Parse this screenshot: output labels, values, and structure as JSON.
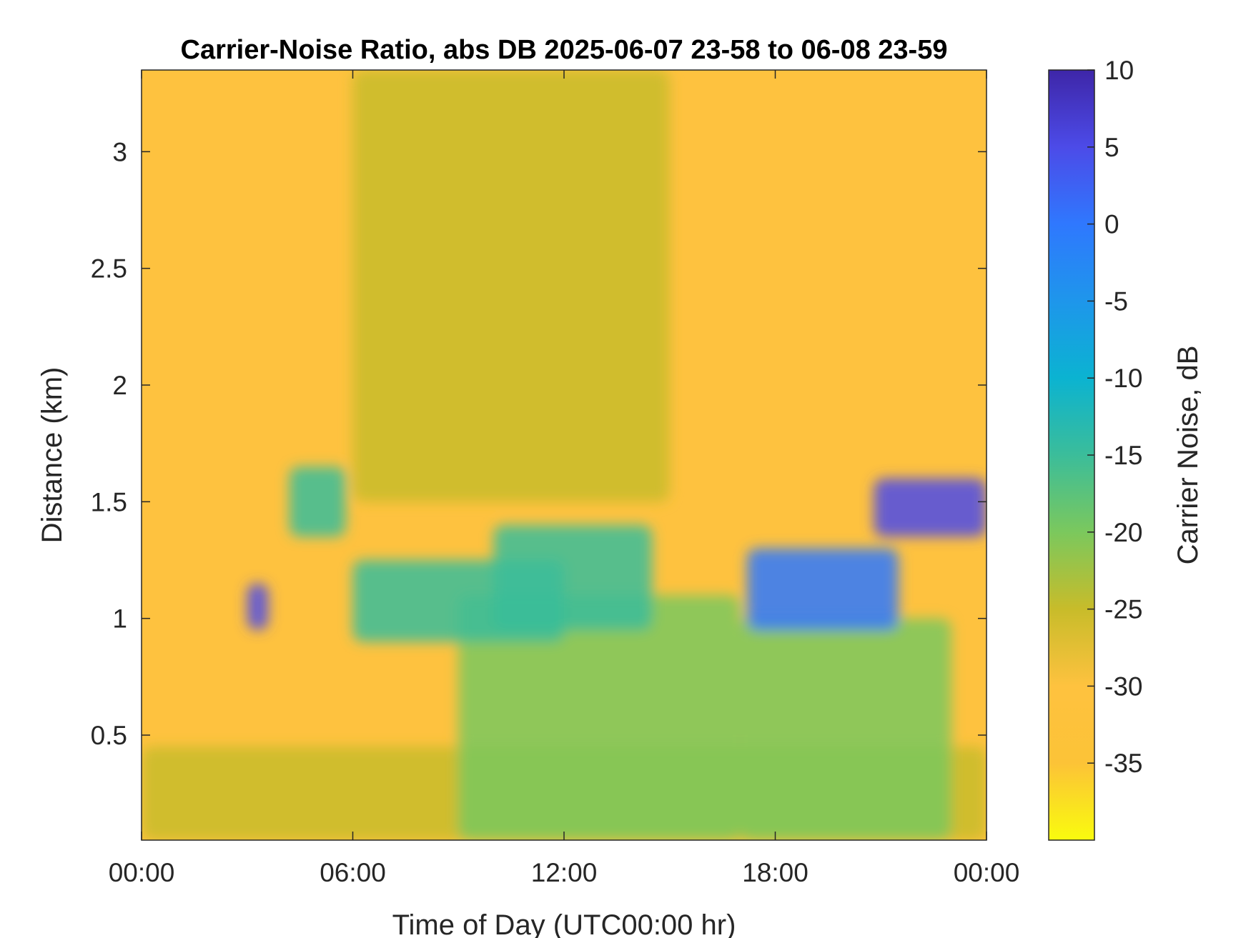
{
  "chart_data": {
    "type": "heatmap",
    "title": "Carrier-Noise Ratio, abs DB 2025-06-07 23-58 to 06-08 23-59",
    "xlabel": "Time of Day (UTC00:00 hr)",
    "ylabel": "Distance (km)",
    "colorbar_label": "Carrier Noise, dB",
    "x_unit": "hours",
    "xlim": [
      0,
      24
    ],
    "ylim": [
      0.05,
      3.35
    ],
    "clim": [
      -40,
      10
    ],
    "x_ticks": [
      {
        "value": 0,
        "label": "00:00"
      },
      {
        "value": 6,
        "label": "06:00"
      },
      {
        "value": 12,
        "label": "12:00"
      },
      {
        "value": 18,
        "label": "18:00"
      },
      {
        "value": 24,
        "label": "00:00"
      }
    ],
    "y_ticks": [
      {
        "value": 0.5,
        "label": "0.5"
      },
      {
        "value": 1,
        "label": "1"
      },
      {
        "value": 1.5,
        "label": "1.5"
      },
      {
        "value": 2,
        "label": "2"
      },
      {
        "value": 2.5,
        "label": "2.5"
      },
      {
        "value": 3,
        "label": "3"
      }
    ],
    "colorbar_ticks": [
      {
        "value": 10,
        "label": "10"
      },
      {
        "value": 5,
        "label": "5"
      },
      {
        "value": 0,
        "label": "0"
      },
      {
        "value": -5,
        "label": "-5"
      },
      {
        "value": -10,
        "label": "-10"
      },
      {
        "value": -15,
        "label": "-15"
      },
      {
        "value": -20,
        "label": "-20"
      },
      {
        "value": -25,
        "label": "-25"
      },
      {
        "value": -30,
        "label": "-30"
      },
      {
        "value": -35,
        "label": "-35"
      }
    ],
    "colormap": [
      "#f9fb0e",
      "#fcc337",
      "#fec23f",
      "#c8bc2a",
      "#7bc85d",
      "#3bbd9a",
      "#0bb3d1",
      "#1e96eb",
      "#2f78fe",
      "#4c4be8",
      "#3e26a8"
    ],
    "background_value": -31,
    "features": [
      {
        "name": "boundary-layer-near-surface",
        "x_range": [
          0,
          24
        ],
        "y_range": [
          0.05,
          0.45
        ],
        "value": -23
      },
      {
        "name": "midday-mixed-layer",
        "x_range": [
          9,
          17
        ],
        "y_range": [
          0.05,
          1.1
        ],
        "value": -20
      },
      {
        "name": "afternoon-mixed-layer",
        "x_range": [
          17,
          23
        ],
        "y_range": [
          0.05,
          1.0
        ],
        "value": -20
      },
      {
        "name": "morning-layer",
        "x_range": [
          6,
          12
        ],
        "y_range": [
          0.9,
          1.25
        ],
        "value": -16
      },
      {
        "name": "noon-layer-top",
        "x_range": [
          10,
          14.5
        ],
        "y_range": [
          0.95,
          1.4
        ],
        "value": -15
      },
      {
        "name": "early-plume",
        "x_range": [
          4.2,
          5.8
        ],
        "y_range": [
          1.35,
          1.65
        ],
        "value": -14
      },
      {
        "name": "night-cloud-blob",
        "x_range": [
          3.0,
          3.6
        ],
        "y_range": [
          0.95,
          1.15
        ],
        "value": 4
      },
      {
        "name": "evening-cloud-base",
        "x_range": [
          17.2,
          21.5
        ],
        "y_range": [
          0.95,
          1.3
        ],
        "value": 2
      },
      {
        "name": "late-cloud-base",
        "x_range": [
          20.8,
          24
        ],
        "y_range": [
          1.35,
          1.6
        ],
        "value": 3
      },
      {
        "name": "upper-streaks",
        "x_range": [
          6.0,
          15.0
        ],
        "y_range": [
          1.5,
          3.35
        ],
        "value": -26
      }
    ]
  }
}
